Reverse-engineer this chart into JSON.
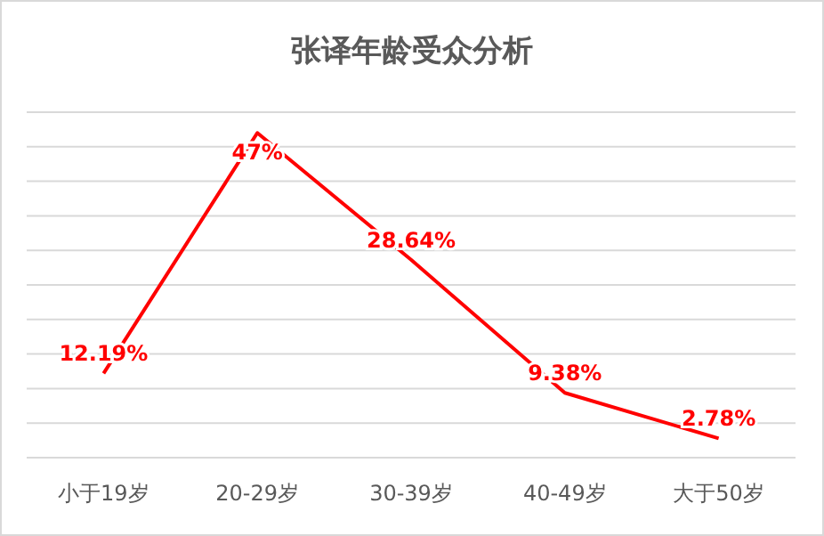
{
  "chart_data": {
    "type": "line",
    "title": "张译年龄受众分析",
    "categories": [
      "小于19岁",
      "20-29岁",
      "30-39岁",
      "40-49岁",
      "大于50岁"
    ],
    "series": [
      {
        "color": "#ff0000",
        "values": [
          12.19,
          47,
          28.64,
          9.38,
          2.78
        ],
        "value_labels": [
          "12.19%",
          "47%",
          "28.64%",
          "9.38%",
          "2.78%"
        ]
      }
    ],
    "ylim": [
      0,
      50
    ],
    "yticks": [
      {
        "value": 0,
        "label": null
      },
      {
        "value": 5,
        "label": null
      },
      {
        "value": 10,
        "label": null
      },
      {
        "value": 15,
        "label": null
      },
      {
        "value": 20,
        "label": null
      },
      {
        "value": 25,
        "label": null
      },
      {
        "value": 30,
        "label": null
      },
      {
        "value": 35,
        "label": null
      },
      {
        "value": 40,
        "label": null
      },
      {
        "value": 45,
        "label": null
      },
      {
        "value": 50,
        "label": null
      }
    ],
    "grid": "y",
    "marker": "none",
    "line_style": "solid",
    "tick_labels": "x"
  }
}
